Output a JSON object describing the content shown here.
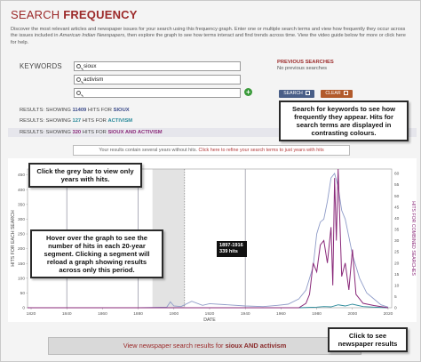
{
  "header": {
    "title_plain": "SEARCH ",
    "title_bold": "FREQUENCY",
    "intro_before": "Discover the most relevant articles and newspaper issues for your search using this frequency graph. Enter one or multiple search terms and view how frequently they occur across the issues included in ",
    "intro_italic": "American Indian Newspapers",
    "intro_after": ", then explore the graph to see how terms interact and find trends across time. View the video guide below for more or click here for help."
  },
  "keywords": {
    "label": "KEYWORDS",
    "inputs": [
      {
        "value": "sioux",
        "placeholder": ""
      },
      {
        "value": "activism",
        "placeholder": ""
      },
      {
        "value": "",
        "placeholder": ""
      }
    ],
    "add_icon": "plus-circle"
  },
  "previous": {
    "title": "PREVIOUS SEARCHES",
    "empty": "No previous searches"
  },
  "buttons": {
    "search": "SEARCH",
    "clear": "CLEAR"
  },
  "results": [
    {
      "prefix": "RESULTS: SHOWING ",
      "count": "11409",
      "middle": " HITS FOR ",
      "term": "SIOUX"
    },
    {
      "prefix": "RESULTS: SHOWING ",
      "count": "127",
      "middle": " HITS FOR ",
      "term": "ACTIVISM"
    },
    {
      "prefix": "RESULTS: SHOWING ",
      "count": "320",
      "middle": " HITS FOR ",
      "term": "SIOUX AND ACTIVISM"
    }
  ],
  "callouts": {
    "search_tip": "Search for keywords to see how frequently they appear. Hits for search terms are displayed in contrasting colours.",
    "grey_bar_tip": "Click the grey bar to view only years with hits.",
    "hover_tip": "Hover over the graph to see the number of hits in each 20-year segment. Clicking a segment will reload a graph showing results across only this period.",
    "results_tip": "Click to see newspaper results"
  },
  "warning": {
    "text": "Your results contain several years without hits. ",
    "link": "Click here to refine your search terms to just years with hits"
  },
  "tooltip": {
    "range": "1897-1916",
    "hits": "339 hits"
  },
  "bottom_button": {
    "text": "View newspaper search results for ",
    "bold": "sioux AND activism"
  },
  "colors": {
    "title": "#9c2a2a",
    "sioux": "#3b4a8a",
    "activism": "#2a8a9a",
    "combined": "#8a2a7a",
    "search_btn": "#4a5f88",
    "clear_btn": "#b25a2b"
  },
  "chart_data": {
    "type": "line",
    "xlabel": "DATE",
    "ylabel": "HITS FOR EACH SEARCH",
    "ylabel_right": "HITS FOR COMBINED SEARCHES",
    "x_ticks": [
      "1820",
      "1840",
      "1860",
      "1880",
      "1900",
      "1920",
      "1940",
      "1960",
      "1980",
      "2000",
      "2020"
    ],
    "y_ticks": [
      "0",
      "50",
      "100",
      "150",
      "200",
      "250",
      "300",
      "350",
      "400",
      "450"
    ],
    "y_ticks_right": [
      "0",
      "5",
      "10",
      "15",
      "20",
      "25",
      "30",
      "35",
      "40",
      "45",
      "50",
      "55",
      "60"
    ],
    "xlim": [
      1818,
      2022
    ],
    "ylim": [
      0,
      470
    ],
    "ylim_right": [
      0,
      62
    ],
    "grey_band": [
      1888,
      1906
    ],
    "series": [
      {
        "name": "sioux",
        "axis": "left",
        "color": "#8f9cc8",
        "x": [
          1818,
          1880,
          1896,
          1898,
          1900,
          1904,
          1910,
          1916,
          1920,
          1930,
          1940,
          1950,
          1958,
          1964,
          1970,
          1974,
          1978,
          1980,
          1982,
          1984,
          1986,
          1988,
          1990,
          1992,
          1994,
          1996,
          1998,
          2000,
          2004,
          2008,
          2012,
          2016,
          2020
        ],
        "y": [
          0,
          0,
          2,
          20,
          6,
          4,
          22,
          8,
          14,
          10,
          6,
          4,
          8,
          12,
          30,
          60,
          140,
          250,
          290,
          300,
          360,
          440,
          455,
          410,
          330,
          300,
          240,
          180,
          100,
          50,
          30,
          10,
          2
        ]
      },
      {
        "name": "activism",
        "axis": "left",
        "color": "#2a8a9a",
        "x": [
          1818,
          1960,
          1970,
          1980,
          1984,
          1988,
          1992,
          1996,
          2000,
          2006,
          2012,
          2020
        ],
        "y": [
          0,
          0,
          0,
          2,
          4,
          3,
          10,
          6,
          12,
          4,
          2,
          0
        ]
      },
      {
        "name": "sioux and activism",
        "axis": "right",
        "color": "#8a2a7a",
        "x": [
          1818,
          1960,
          1970,
          1974,
          1976,
          1978,
          1980,
          1982,
          1984,
          1986,
          1988,
          1989,
          1990,
          1991,
          1992,
          1994,
          1996,
          1998,
          2000,
          2002,
          2006,
          2012,
          2020
        ],
        "y": [
          0,
          0,
          0,
          2,
          6,
          20,
          16,
          28,
          30,
          20,
          36,
          10,
          58,
          30,
          62,
          14,
          20,
          8,
          26,
          6,
          2,
          1,
          0
        ]
      }
    ]
  }
}
